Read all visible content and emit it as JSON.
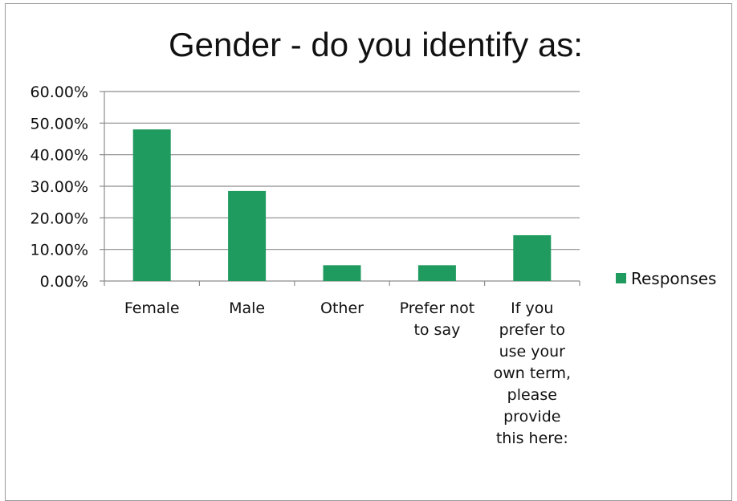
{
  "chart_data": {
    "type": "bar",
    "title": "Gender - do you identify as:",
    "categories": [
      "Female",
      "Male",
      "Other",
      "Prefer not to say",
      "If you prefer to use your own term, please provide this here:"
    ],
    "category_lines": [
      [
        "Female"
      ],
      [
        "Male"
      ],
      [
        "Other"
      ],
      [
        "Prefer not",
        "to say"
      ],
      [
        "If you",
        "prefer to",
        "use your",
        "own term,",
        "please",
        "provide",
        "this here:"
      ]
    ],
    "series": [
      {
        "name": "Responses",
        "values": [
          0.48,
          0.285,
          0.05,
          0.05,
          0.145
        ]
      }
    ],
    "yticks": [
      0,
      0.1,
      0.2,
      0.3,
      0.4,
      0.5,
      0.6
    ],
    "ytick_labels": [
      "0.00%",
      "10.00%",
      "20.00%",
      "30.00%",
      "40.00%",
      "50.00%",
      "60.00%"
    ],
    "ylim": [
      0,
      0.6
    ],
    "grid": true,
    "legend_position": "right",
    "colors": {
      "bar": "#1f9b5f",
      "grid": "#8c8c8c",
      "axis": "#8c8c8c"
    }
  }
}
